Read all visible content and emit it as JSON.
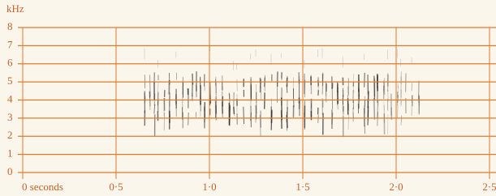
{
  "chart_data": {
    "type": "spectrogram",
    "y_label": "kHz",
    "xlim": [
      0,
      2.5
    ],
    "xticks": [
      {
        "value": 0,
        "label": "0 seconds"
      },
      {
        "value": 0.5,
        "label": "0·5"
      },
      {
        "value": 1,
        "label": "1·0"
      },
      {
        "value": 1.5,
        "label": "1·5"
      },
      {
        "value": 2,
        "label": "2·0"
      },
      {
        "value": 2.5,
        "label": "2·5"
      }
    ],
    "ylim": [
      0,
      8
    ],
    "yticks": [
      0,
      1,
      2,
      3,
      4,
      5,
      6,
      7,
      8
    ],
    "grid": true,
    "color": "#e07b2c"
  }
}
